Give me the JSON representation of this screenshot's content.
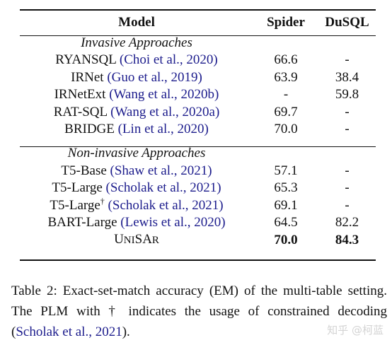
{
  "table": {
    "headers": {
      "model": "Model",
      "spider": "Spider",
      "dusql": "DuSQL"
    },
    "groups": [
      {
        "title": "Invasive Approaches",
        "rows": [
          {
            "model": "RYANSQL",
            "cite": "Choi et al., 2020",
            "spider": "66.6",
            "dusql": "-"
          },
          {
            "model": "IRNet",
            "cite": "Guo et al., 2019",
            "spider": "63.9",
            "dusql": "38.4"
          },
          {
            "model": "IRNetExt",
            "cite": "Wang et al., 2020b",
            "spider": "-",
            "dusql": "59.8"
          },
          {
            "model": "RAT-SQL",
            "cite": "Wang et al., 2020a",
            "spider": "69.7",
            "dusql": "-"
          },
          {
            "model": "BRIDGE",
            "cite": "Lin et al., 2020",
            "spider": "70.0",
            "dusql": "-"
          }
        ]
      },
      {
        "title": "Non-invasive Approaches",
        "rows": [
          {
            "model": "T5-Base",
            "cite": "Shaw et al., 2021",
            "spider": "57.1",
            "dusql": "-"
          },
          {
            "model": "T5-Large",
            "cite": "Scholak et al., 2021",
            "spider": "65.3",
            "dusql": "-"
          },
          {
            "model": "T5-Large",
            "marker": "†",
            "cite": "Scholak et al., 2021",
            "spider": "69.1",
            "dusql": "-"
          },
          {
            "model": "BART-Large",
            "cite": "Lewis et al., 2020",
            "spider": "64.5",
            "dusql": "82.2"
          }
        ],
        "final_row": {
          "model_parts": [
            "U",
            "NI",
            "SA",
            "R"
          ],
          "spider": "70.0",
          "dusql": "84.3"
        }
      }
    ]
  },
  "caption": {
    "text_before": "Table 2: Exact-set-match accuracy (EM) of the multi-table setting. The PLM with † indicates the usage of constrained decoding (",
    "cite": "Scholak et al., 2021",
    "text_after": ")."
  },
  "watermark": "知乎 @柯蓝"
}
